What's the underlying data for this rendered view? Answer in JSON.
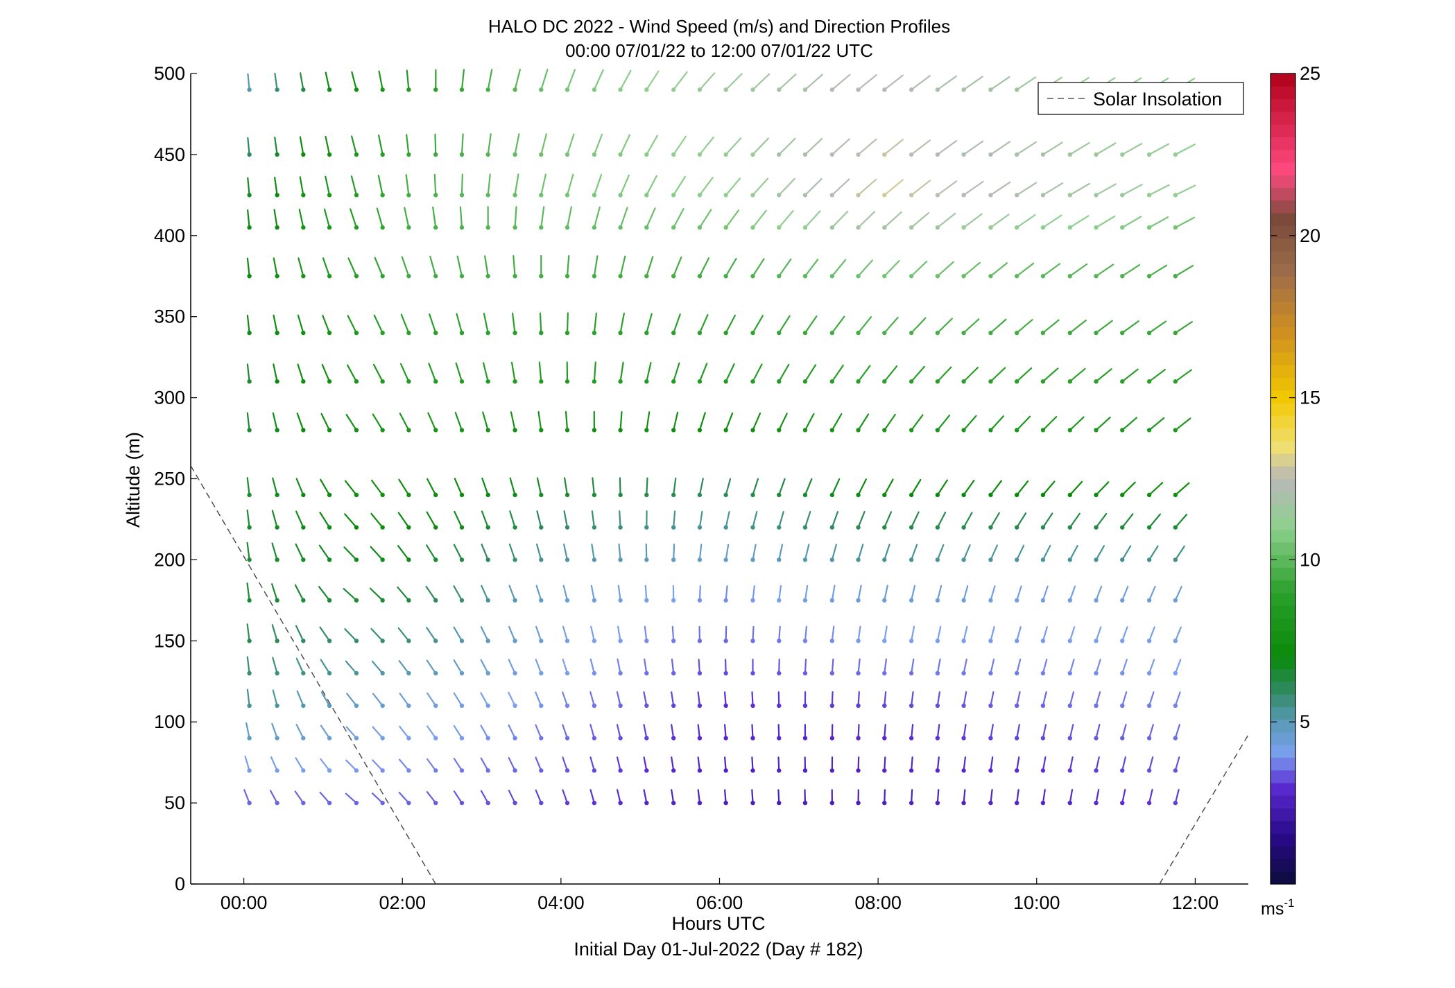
{
  "chart_data": {
    "type": "wind-barb-profile",
    "title": "HALO DC 2022 - Wind Speed (m/s) and Direction Profiles",
    "subtitle": "00:00 07/01/22 to 12:00 07/01/22  UTC",
    "xlabel": "Hours UTC",
    "xlabel2": "Initial Day 01-Jul-2022 (Day # 182)",
    "ylabel": "Altitude (m)",
    "xlim": [
      -0.67,
      12.67
    ],
    "ylim": [
      0,
      500
    ],
    "x_ticks": [
      0,
      2,
      4,
      6,
      8,
      10,
      12
    ],
    "x_tick_labels": [
      "00:00",
      "02:00",
      "04:00",
      "06:00",
      "08:00",
      "10:00",
      "12:00"
    ],
    "y_ticks": [
      0,
      50,
      100,
      150,
      200,
      250,
      300,
      350,
      400,
      450,
      500
    ],
    "y_tick_labels": [
      "0",
      "50",
      "100",
      "150",
      "200",
      "250",
      "300",
      "350",
      "400",
      "450",
      "500"
    ],
    "legend": {
      "label": "Solar Insolation",
      "placement": "top-right"
    },
    "colorbar": {
      "min": 0,
      "max": 25,
      "ticks": [
        5,
        10,
        15,
        20,
        25
      ],
      "tick_labels": [
        "5",
        "10",
        "15",
        "20",
        "25"
      ],
      "unit_label": "ms",
      "unit_exponent": "-1"
    },
    "colormap": [
      [
        0,
        "#0b0b3b"
      ],
      [
        1.5,
        "#2a0a8a"
      ],
      [
        3,
        "#5a2ad0"
      ],
      [
        4,
        "#7aa0f0"
      ],
      [
        5,
        "#5a9ab8"
      ],
      [
        6,
        "#2e8a5e"
      ],
      [
        7,
        "#0a8a0a"
      ],
      [
        9,
        "#2aa02a"
      ],
      [
        11,
        "#8ed08e"
      ],
      [
        12.5,
        "#b8b8b8"
      ],
      [
        13.5,
        "#f0e070"
      ],
      [
        15,
        "#f2c800"
      ],
      [
        17,
        "#d09020"
      ],
      [
        19,
        "#9a6a4a"
      ],
      [
        20.5,
        "#7a4a3a"
      ],
      [
        22,
        "#ff4a80"
      ],
      [
        25,
        "#b0001a"
      ]
    ],
    "solar_insolation": [
      {
        "x": [
          -0.67,
          2.42
        ],
        "y": [
          258,
          0
        ]
      },
      {
        "x": [
          11.55,
          12.67
        ],
        "y": [
          0,
          92
        ]
      }
    ],
    "profile_times": [
      0.07,
      0.42,
      0.75,
      1.08,
      1.42,
      1.75,
      2.08,
      2.42,
      2.75,
      3.08,
      3.42,
      3.75,
      4.08,
      4.42,
      4.75,
      5.08,
      5.42,
      5.75,
      6.08,
      6.42,
      6.75,
      7.08,
      7.42,
      7.75,
      8.08,
      8.42,
      8.75,
      9.08,
      9.42,
      9.75,
      10.08,
      10.42,
      10.75,
      11.08,
      11.42,
      11.75
    ],
    "altitudes": [
      50,
      70,
      90,
      110,
      130,
      150,
      175,
      200,
      220,
      240,
      280,
      310,
      340,
      375,
      405,
      425,
      450,
      490
    ],
    "speed_anchors": [
      {
        "z": 50,
        "t": [
          0,
          2,
          4,
          6,
          8,
          10,
          12
        ],
        "v": [
          3.5,
          3.5,
          3.2,
          2.5,
          2.5,
          2.8,
          3.2
        ]
      },
      {
        "z": 110,
        "t": [
          0,
          2,
          4,
          6,
          8,
          10,
          12
        ],
        "v": [
          5.5,
          4.5,
          3.8,
          3.0,
          3.2,
          3.5,
          3.8
        ]
      },
      {
        "z": 175,
        "t": [
          0,
          2,
          4,
          6,
          8,
          10,
          12
        ],
        "v": [
          6.5,
          6.5,
          4.5,
          3.8,
          4.5,
          4.2,
          4.5
        ]
      },
      {
        "z": 240,
        "t": [
          0,
          2,
          4,
          6,
          8,
          10,
          12
        ],
        "v": [
          6.5,
          7.5,
          6.5,
          6.0,
          7.0,
          7.0,
          7.5
        ]
      },
      {
        "z": 310,
        "t": [
          0,
          2,
          4,
          6,
          8,
          10,
          12
        ],
        "v": [
          6.5,
          8.5,
          8.5,
          8.5,
          9.0,
          9.0,
          9.0
        ]
      },
      {
        "z": 375,
        "t": [
          0,
          2,
          4,
          6,
          8,
          10,
          12
        ],
        "v": [
          7.0,
          9.5,
          9.5,
          9.5,
          10.5,
          10.0,
          9.5
        ]
      },
      {
        "z": 425,
        "t": [
          0,
          2,
          4,
          6,
          8,
          10,
          12
        ],
        "v": [
          6.5,
          9.5,
          10.5,
          11.0,
          13.0,
          12.0,
          11.0
        ]
      },
      {
        "z": 490,
        "t": [
          0,
          2,
          4,
          6,
          8,
          10,
          12
        ],
        "v": [
          5.0,
          8.5,
          10.5,
          11.5,
          12.5,
          11.5,
          11.0
        ]
      }
    ],
    "direction_anchors": [
      {
        "z": 50,
        "t": [
          0,
          1.5,
          3,
          4.5,
          6,
          9,
          12
        ],
        "d": [
          340,
          310,
          330,
          345,
          355,
          5,
          15
        ]
      },
      {
        "z": 110,
        "t": [
          0,
          1.5,
          3,
          4.5,
          6,
          9,
          12
        ],
        "d": [
          355,
          320,
          330,
          345,
          355,
          10,
          20
        ]
      },
      {
        "z": 175,
        "t": [
          0,
          1.5,
          3,
          4.5,
          6,
          9,
          12
        ],
        "d": [
          355,
          310,
          335,
          350,
          5,
          15,
          25
        ]
      },
      {
        "z": 240,
        "t": [
          0,
          1.5,
          3,
          4.5,
          6,
          9,
          12
        ],
        "d": [
          355,
          320,
          340,
          355,
          15,
          35,
          50
        ]
      },
      {
        "z": 310,
        "t": [
          0,
          1.5,
          3,
          4.5,
          6,
          9,
          12
        ],
        "d": [
          355,
          330,
          345,
          5,
          25,
          45,
          55
        ]
      },
      {
        "z": 375,
        "t": [
          0,
          1.5,
          3,
          4.5,
          6,
          9,
          12
        ],
        "d": [
          355,
          335,
          350,
          10,
          30,
          50,
          60
        ]
      },
      {
        "z": 425,
        "t": [
          0,
          1.5,
          3,
          4.5,
          6,
          9,
          12
        ],
        "d": [
          355,
          345,
          5,
          20,
          40,
          55,
          65
        ]
      },
      {
        "z": 490,
        "t": [
          0,
          1.5,
          3,
          4.5,
          6,
          9,
          12
        ],
        "d": [
          355,
          345,
          10,
          25,
          45,
          55,
          60
        ]
      }
    ]
  }
}
